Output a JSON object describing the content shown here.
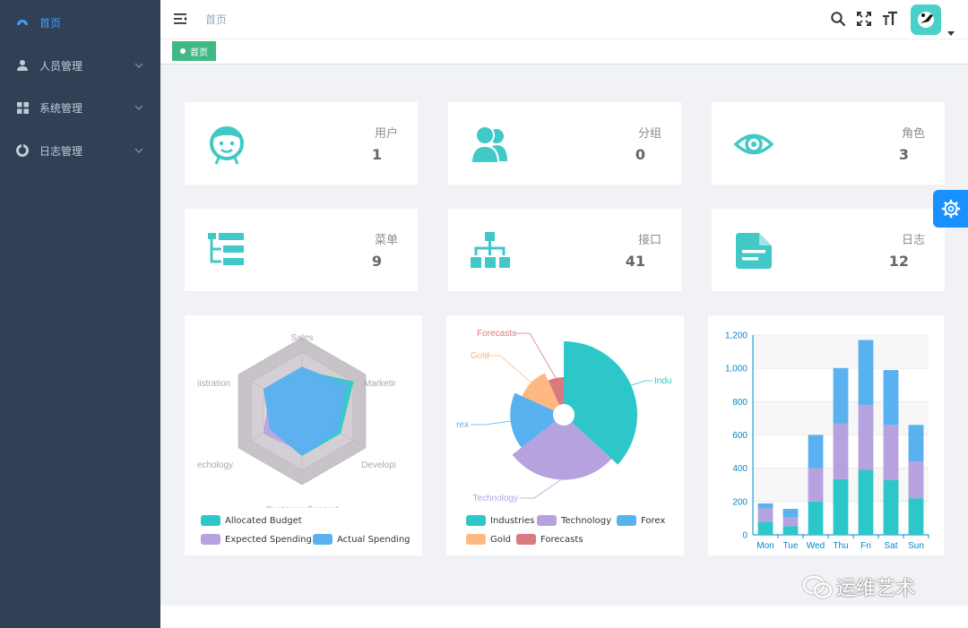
{
  "sidebar": {
    "items": [
      {
        "label": "首页",
        "icon": "dashboard-icon",
        "active": true
      },
      {
        "label": "人员管理",
        "icon": "user-icon",
        "active": false
      },
      {
        "label": "系统管理",
        "icon": "grid-icon",
        "active": false
      },
      {
        "label": "日志管理",
        "icon": "log-icon",
        "active": false
      }
    ]
  },
  "navbar": {
    "breadcrumb": "首页",
    "icons": [
      "search-icon",
      "fullscreen-icon",
      "font-size-icon"
    ]
  },
  "tags": [
    {
      "label": "首页",
      "active": true
    }
  ],
  "cards": [
    {
      "title": "用户",
      "value": "1",
      "icon": "face-icon"
    },
    {
      "title": "分组",
      "value": "0",
      "icon": "group-icon"
    },
    {
      "title": "角色",
      "value": "3",
      "icon": "eye-icon"
    },
    {
      "title": "菜单",
      "value": "9",
      "icon": "tree-table-icon"
    },
    {
      "title": "接口",
      "value": "41",
      "icon": "tree-icon"
    },
    {
      "title": "日志",
      "value": "12",
      "icon": "document-icon"
    }
  ],
  "colors": {
    "teal": "#2ec7c9",
    "purple": "#b6a2de",
    "blue": "#5ab1ef",
    "orange": "#ffb980",
    "red": "#d87a80",
    "sidebar": "#304156",
    "accent": "#409eff",
    "tag": "#42b983"
  },
  "chart_data": [
    {
      "type": "radar",
      "indicators": [
        "Sales",
        "Marketing",
        "Development",
        "Customer Support",
        "Technology",
        "Administration"
      ],
      "indicator_labels_shown": [
        "Sales",
        "Marketir",
        "Developi",
        "Customer Support",
        "echology",
        "iistration"
      ],
      "series": [
        {
          "name": "Allocated Budget",
          "values": [
            0.55,
            0.8,
            0.6,
            0.6,
            0.45,
            0.55
          ]
        },
        {
          "name": "Expected Spending",
          "values": [
            0.5,
            0.6,
            0.45,
            0.55,
            0.6,
            0.5
          ]
        },
        {
          "name": "Actual Spending",
          "values": [
            0.6,
            0.7,
            0.55,
            0.6,
            0.5,
            0.6
          ]
        }
      ],
      "legend": [
        "Allocated Budget",
        "Expected Spending",
        "Actual Spending"
      ],
      "legend_position": "bottom"
    },
    {
      "type": "pie",
      "variant": "rose",
      "categories": [
        "Industries",
        "Technology",
        "Forex",
        "Gold",
        "Forecasts"
      ],
      "labels_shown": [
        "Indu",
        "Technology",
        "rex",
        "Gold",
        "Forecasts"
      ],
      "values": [
        320,
        240,
        149,
        100,
        59
      ],
      "legend": [
        "Industries",
        "Technology",
        "Forex",
        "Gold",
        "Forecasts"
      ],
      "legend_position": "bottom"
    },
    {
      "type": "bar",
      "stacked": true,
      "categories": [
        "Mon",
        "Tue",
        "Wed",
        "Thu",
        "Fri",
        "Sat",
        "Sun"
      ],
      "series": [
        {
          "values": [
            79,
            52,
            200,
            334,
            390,
            330,
            220
          ]
        },
        {
          "values": [
            80,
            52,
            200,
            334,
            390,
            330,
            220
          ]
        },
        {
          "values": [
            30,
            52,
            200,
            334,
            390,
            330,
            220
          ]
        }
      ],
      "ylim": [
        0,
        1200
      ],
      "yticks": [
        "0",
        "200",
        "400",
        "600",
        "800",
        "1,000",
        "1,200"
      ],
      "grid": true
    }
  ],
  "watermark": "运维艺术"
}
